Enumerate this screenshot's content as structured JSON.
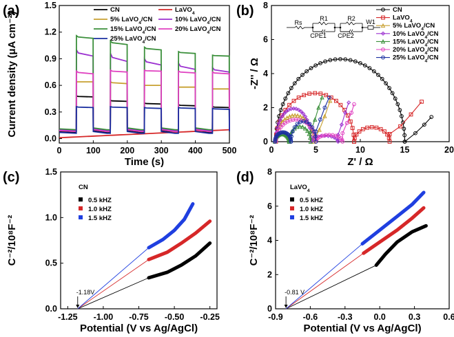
{
  "chart_data": [
    {
      "panel": "(a)",
      "type": "line",
      "title": "",
      "xlabel": "Time (s)",
      "ylabel": "Current density (μA cm⁻²)",
      "xlim": [
        0,
        500
      ],
      "ylim": [
        -0.05,
        1.5
      ],
      "xticks": [
        "0",
        "100",
        "200",
        "300",
        "400",
        "500"
      ],
      "yticks": [
        "0.0",
        "0.3",
        "0.6",
        "0.9",
        "1.2",
        "1.5"
      ],
      "light_on_intervals": [
        [
          50,
          100
        ],
        [
          150,
          200
        ],
        [
          250,
          300
        ],
        [
          350,
          400
        ],
        [
          450,
          500
        ]
      ],
      "series": [
        {
          "name": "CN",
          "label_main": "CN",
          "label_sub": "",
          "label_tail": "",
          "color": "#000000",
          "base": 0.07,
          "peaks": [
            0.48,
            0.43,
            0.4,
            0.38,
            0.36
          ],
          "steady": [
            0.47,
            0.42,
            0.39,
            0.37,
            0.35
          ]
        },
        {
          "name": "LaVO4",
          "label_main": "LaVO",
          "label_sub": "4",
          "label_tail": "",
          "color": "#d62728",
          "base_start": 0.01,
          "base_end": 0.1
        },
        {
          "name": "5% LaVO4/CN",
          "label_main": "5%  LaVO",
          "label_sub": "4",
          "label_tail": "/CN",
          "color": "#c8a030",
          "base": 0.08,
          "peaks": [
            0.64,
            0.64,
            0.6,
            0.58,
            0.56
          ],
          "steady": [
            0.64,
            0.62,
            0.6,
            0.58,
            0.56
          ]
        },
        {
          "name": "10% LaVO4/CN",
          "label_main": "10% LaVO",
          "label_sub": "4",
          "label_tail": "/CN",
          "color": "#9b30d0",
          "base": 0.09,
          "peaks": [
            1.0,
            0.96,
            0.9,
            0.85,
            0.8
          ],
          "steady": [
            0.93,
            0.87,
            0.83,
            0.78,
            0.75
          ]
        },
        {
          "name": "15% LaVO4/CN",
          "label_main": "15% LaVO",
          "label_sub": "4",
          "label_tail": "/CN",
          "color": "#3a8f3a",
          "base": 0.1,
          "peaks": [
            1.16,
            1.1,
            1.03,
            0.98,
            0.94
          ],
          "steady": [
            1.13,
            1.06,
            1.0,
            0.96,
            0.93
          ]
        },
        {
          "name": "20% LaVO4/CN",
          "label_main": "20% LaVO",
          "label_sub": "4",
          "label_tail": "/CN",
          "color": "#e040c0",
          "base": 0.08,
          "peaks": [
            0.76,
            0.77,
            0.77,
            0.76,
            0.75
          ],
          "steady": [
            0.73,
            0.75,
            0.76,
            0.74,
            0.73
          ]
        },
        {
          "name": "25% LaVO4/CN",
          "label_main": "25% LaVO",
          "label_sub": "4",
          "label_tail": "/CN",
          "color": "#1a2fa0",
          "base": 0.06,
          "peaks": [
            0.36,
            0.36,
            0.35,
            0.35,
            0.34
          ],
          "steady": [
            0.35,
            0.35,
            0.34,
            0.34,
            0.33
          ]
        }
      ]
    },
    {
      "panel": "(b)",
      "type": "scatter",
      "title": "",
      "xlabel": "Z' / Ω",
      "ylabel": "-Z'' / Ω",
      "xlim": [
        0,
        20
      ],
      "ylim": [
        0,
        8
      ],
      "xticks": [
        "0",
        "5",
        "10",
        "15",
        "20"
      ],
      "yticks": [
        "0",
        "2",
        "4",
        "6",
        "8"
      ],
      "circuit_labels": [
        "Rs",
        "R1",
        "CPE1",
        "R2",
        "CPE2",
        "W1"
      ],
      "series": [
        {
          "name": "CN",
          "label_main": "CN",
          "label_sub": "",
          "label_tail": "",
          "color": "#000000",
          "marker": "circle",
          "arc1": [
            0.5,
            15.0,
            4.85
          ],
          "tail": [
            [
              15.0,
              0.0
            ],
            [
              16.2,
              0.5
            ],
            [
              17.2,
              1.0
            ],
            [
              18.0,
              1.45
            ]
          ]
        },
        {
          "name": "LaVO4",
          "label_main": "LaVO",
          "label_sub": "4",
          "label_tail": "",
          "color": "#d62728",
          "marker": "square",
          "arc1": [
            0.5,
            9.3,
            2.85
          ],
          "arc2": [
            9.3,
            13.3,
            0.85
          ],
          "tail": [
            [
              13.3,
              0.45
            ],
            [
              14.5,
              0.9
            ],
            [
              15.7,
              1.6
            ],
            [
              16.9,
              2.35
            ]
          ]
        },
        {
          "name": "5% LaVO4/CN",
          "label_main": "5%  LaVO",
          "label_sub": "4",
          "label_tail": "/CN",
          "color": "#c8a030",
          "marker": "triangle",
          "arc1": [
            0.5,
            4.8,
            1.55
          ],
          "tail": [
            [
              4.8,
              0.1
            ],
            [
              5.4,
              0.7
            ],
            [
              6.0,
              1.5
            ],
            [
              6.6,
              2.4
            ]
          ]
        },
        {
          "name": "10% LaVO4/CN",
          "label_main": "10% LaVO",
          "label_sub": "4",
          "label_tail": "/CN",
          "color": "#9b30d0",
          "marker": "diamond",
          "arc1": [
            0.5,
            4.5,
            1.95
          ],
          "arc2": [
            4.5,
            7.5,
            0.35
          ],
          "tail": [
            [
              7.5,
              0.4
            ],
            [
              7.9,
              1.0
            ],
            [
              8.3,
              1.7
            ],
            [
              8.7,
              2.3
            ]
          ]
        },
        {
          "name": "15% LaVO4/CN",
          "label_main": "15% LaVO",
          "label_sub": "4",
          "label_tail": "/CN",
          "color": "#3a8f3a",
          "marker": "triangle",
          "arc1": [
            0.4,
            2.0,
            0.45
          ],
          "arc2": [
            2.0,
            4.4,
            0.9
          ],
          "tail": [
            [
              4.4,
              0.6
            ],
            [
              4.9,
              1.3
            ],
            [
              5.3,
              2.0
            ],
            [
              5.7,
              2.6
            ]
          ]
        },
        {
          "name": "20% LaVO4/CN",
          "label_main": "20% LaVO",
          "label_sub": "4",
          "label_tail": "/CN",
          "color": "#e040c0",
          "marker": "circle",
          "arc1": [
            0.5,
            5.0,
            1.3
          ],
          "arc2": [
            5.0,
            8.0,
            0.4
          ],
          "tail": [
            [
              8.0,
              0.5
            ],
            [
              8.5,
              1.1
            ],
            [
              9.0,
              1.7
            ],
            [
              9.3,
              2.2
            ]
          ]
        },
        {
          "name": "25% LaVO4/CN",
          "label_main": "25% LaVO",
          "label_sub": "4",
          "label_tail": "/CN",
          "color": "#1a2fa0",
          "marker": "circle",
          "arc1": [
            0.4,
            2.2,
            0.55
          ],
          "arc2": [
            2.2,
            5.0,
            1.2
          ],
          "tail": [
            [
              5.0,
              0.6
            ],
            [
              5.5,
              1.3
            ],
            [
              6.0,
              2.0
            ],
            [
              6.5,
              2.6
            ]
          ]
        }
      ]
    },
    {
      "panel": "(c)",
      "type": "line",
      "title": "",
      "xlabel": "Potential (V vs Ag/AgCl)",
      "ylabel": "C⁻²/10⁸F⁻²",
      "xlim": [
        -1.3,
        -0.2
      ],
      "ylim": [
        0,
        1.5
      ],
      "xticks": [
        {
          "v": -1.25,
          "t": "-1.25"
        },
        {
          "v": -1.0,
          "t": "-1.00"
        },
        {
          "v": -0.75,
          "t": "-0.75"
        },
        {
          "v": -0.5,
          "t": "-0.50"
        },
        {
          "v": -0.25,
          "t": "-0.25"
        }
      ],
      "yticks": [
        {
          "v": 0,
          "t": "0.0"
        },
        {
          "v": 0.5,
          "t": "0.5"
        },
        {
          "v": 1.0,
          "t": "1.0"
        },
        {
          "v": 1.5,
          "t": "1.5"
        }
      ],
      "legend_title": "CN",
      "intercept_label": "-1.18V",
      "intercept": -1.18,
      "series": [
        {
          "name": "0.5 kHZ",
          "color": "#000000",
          "points": [
            [
              -0.68,
              0.34
            ],
            [
              -0.55,
              0.4
            ],
            [
              -0.45,
              0.48
            ],
            [
              -0.35,
              0.58
            ],
            [
              -0.25,
              0.72
            ]
          ]
        },
        {
          "name": "1.0 kHZ",
          "color": "#d62728",
          "points": [
            [
              -0.68,
              0.54
            ],
            [
              -0.55,
              0.62
            ],
            [
              -0.45,
              0.72
            ],
            [
              -0.35,
              0.83
            ],
            [
              -0.25,
              0.96
            ]
          ]
        },
        {
          "name": "1.5 kHZ",
          "color": "#1f3fe0",
          "points": [
            [
              -0.68,
              0.67
            ],
            [
              -0.58,
              0.76
            ],
            [
              -0.5,
              0.86
            ],
            [
              -0.43,
              0.98
            ],
            [
              -0.37,
              1.15
            ]
          ]
        }
      ]
    },
    {
      "panel": "(d)",
      "type": "line",
      "title": "",
      "xlabel": "Potential (V vs Ag/AgCl)",
      "ylabel": "C⁻²/10⁸F⁻²",
      "xlim": [
        -0.9,
        0.6
      ],
      "ylim": [
        0,
        8
      ],
      "xticks": [
        {
          "v": -0.9,
          "t": "-0.9"
        },
        {
          "v": -0.6,
          "t": "-0.6"
        },
        {
          "v": -0.3,
          "t": "-0.3"
        },
        {
          "v": 0.0,
          "t": "0.0"
        },
        {
          "v": 0.3,
          "t": "0.3"
        },
        {
          "v": 0.6,
          "t": "0.6"
        }
      ],
      "yticks": [
        {
          "v": 0,
          "t": "0"
        },
        {
          "v": 2,
          "t": "2"
        },
        {
          "v": 4,
          "t": "4"
        },
        {
          "v": 6,
          "t": "6"
        },
        {
          "v": 8,
          "t": "8"
        }
      ],
      "legend_title_main": "LaVO",
      "legend_title_sub": "4",
      "intercept_label": "-0.81 V",
      "intercept": -0.81,
      "series": [
        {
          "name": "0.5 kHZ",
          "color": "#000000",
          "points": [
            [
              -0.03,
              2.55
            ],
            [
              0.05,
              3.2
            ],
            [
              0.15,
              3.9
            ],
            [
              0.28,
              4.5
            ],
            [
              0.4,
              4.85
            ]
          ]
        },
        {
          "name": "1.0 kHZ",
          "color": "#d62728",
          "points": [
            [
              -0.14,
              3.25
            ],
            [
              0.0,
              3.9
            ],
            [
              0.15,
              4.6
            ],
            [
              0.28,
              5.3
            ],
            [
              0.38,
              5.9
            ]
          ]
        },
        {
          "name": "1.5 kHZ",
          "color": "#1f3fe0",
          "points": [
            [
              -0.15,
              3.8
            ],
            [
              0.0,
              4.6
            ],
            [
              0.15,
              5.4
            ],
            [
              0.28,
              6.1
            ],
            [
              0.38,
              6.8
            ]
          ]
        }
      ]
    }
  ]
}
